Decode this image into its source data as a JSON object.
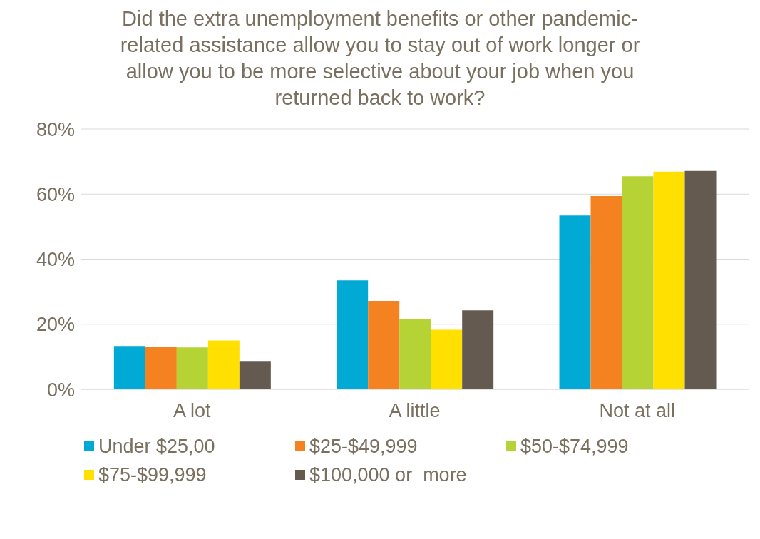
{
  "chart_data": {
    "type": "bar",
    "title": "Did the extra unemployment benefits or other pandemic-related assistance allow you to stay out of work longer or allow you to be more selective about your job when you returned back to work?",
    "categories": [
      "A lot",
      "A little",
      "Not at all"
    ],
    "series": [
      {
        "name": "Under $25,00",
        "color": "#00aad4",
        "values": [
          13.3,
          33.5,
          53.4
        ]
      },
      {
        "name": "$25-$49,999",
        "color": "#f58220",
        "values": [
          13.1,
          27.2,
          59.4
        ]
      },
      {
        "name": "$50-$74,999",
        "color": "#b5d334",
        "values": [
          12.9,
          21.6,
          65.5
        ]
      },
      {
        "name": "$75-$99,999",
        "color": "#ffe000",
        "values": [
          15.0,
          18.3,
          66.9
        ]
      },
      {
        "name": "$100,000 or  more",
        "color": "#645a50",
        "values": [
          8.5,
          24.3,
          67.1
        ]
      }
    ],
    "ylim": [
      0,
      80
    ],
    "yticks": [
      {
        "value": 0,
        "label": "0%"
      },
      {
        "value": 20,
        "label": "20%"
      },
      {
        "value": 40,
        "label": "40%"
      },
      {
        "value": 60,
        "label": "60%"
      },
      {
        "value": 80,
        "label": "80%"
      }
    ],
    "grid": "y",
    "legend": "bottom"
  }
}
